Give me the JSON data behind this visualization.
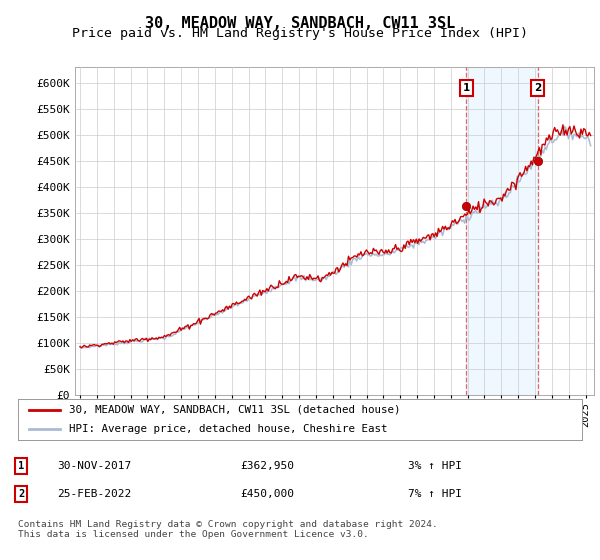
{
  "title": "30, MEADOW WAY, SANDBACH, CW11 3SL",
  "subtitle": "Price paid vs. HM Land Registry's House Price Index (HPI)",
  "ylabel_ticks": [
    "£0",
    "£50K",
    "£100K",
    "£150K",
    "£200K",
    "£250K",
    "£300K",
    "£350K",
    "£400K",
    "£450K",
    "£500K",
    "£550K",
    "£600K"
  ],
  "ytick_values": [
    0,
    50000,
    100000,
    150000,
    200000,
    250000,
    300000,
    350000,
    400000,
    450000,
    500000,
    550000,
    600000
  ],
  "ylim": [
    0,
    630000
  ],
  "xlim_start": 1994.7,
  "xlim_end": 2025.5,
  "hpi_color": "#aabbd4",
  "price_color": "#cc0000",
  "marker1_year": 2017.92,
  "marker1_price": 362950,
  "marker2_year": 2022.15,
  "marker2_price": 450000,
  "legend_line1": "30, MEADOW WAY, SANDBACH, CW11 3SL (detached house)",
  "legend_line2": "HPI: Average price, detached house, Cheshire East",
  "annotation1_date": "30-NOV-2017",
  "annotation1_price": "£362,950",
  "annotation1_hpi": "3% ↑ HPI",
  "annotation2_date": "25-FEB-2022",
  "annotation2_price": "£450,000",
  "annotation2_hpi": "7% ↑ HPI",
  "footer": "Contains HM Land Registry data © Crown copyright and database right 2024.\nThis data is licensed under the Open Government Licence v3.0.",
  "bg_color": "#ffffff",
  "grid_color": "#cccccc",
  "title_fontsize": 11,
  "subtitle_fontsize": 9.5
}
